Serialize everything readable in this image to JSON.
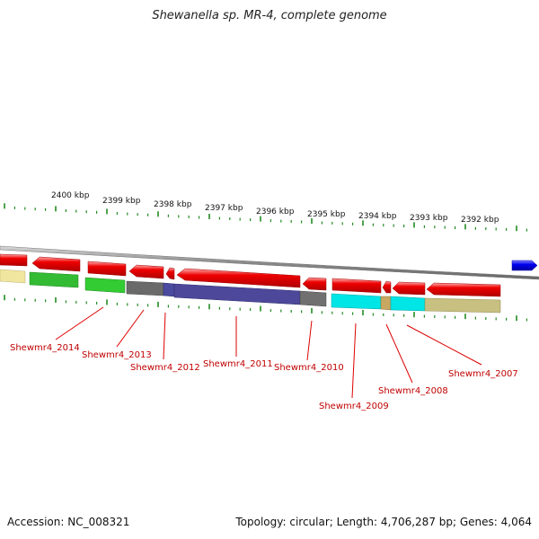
{
  "title": "Shewanella sp. MR-4, complete genome",
  "footer": {
    "accession": "Accession: NC_008321",
    "topology": "Topology: circular; Length: 4,706,287 bp; Genes: 4,064"
  },
  "ruler": [
    "2400 kbp",
    "2399 kbp",
    "2398 kbp",
    "2397 kbp",
    "2396 kbp",
    "2395 kbp",
    "2394 kbp",
    "2393 kbp",
    "2392 kbp"
  ],
  "gene_labels": [
    "Shewmr4_2014",
    "Shewmr4_2013",
    "Shewmr4_2012",
    "Shewmr4_2011",
    "Shewmr4_2010",
    "Shewmr4_2009",
    "Shewmr4_2008",
    "Shewmr4_2007"
  ],
  "colors": {
    "gene": "#ee0000",
    "gene_label": "#c00000",
    "tick": "#228B22",
    "backbone": "#888888",
    "blue_feature": "#0000ee"
  }
}
